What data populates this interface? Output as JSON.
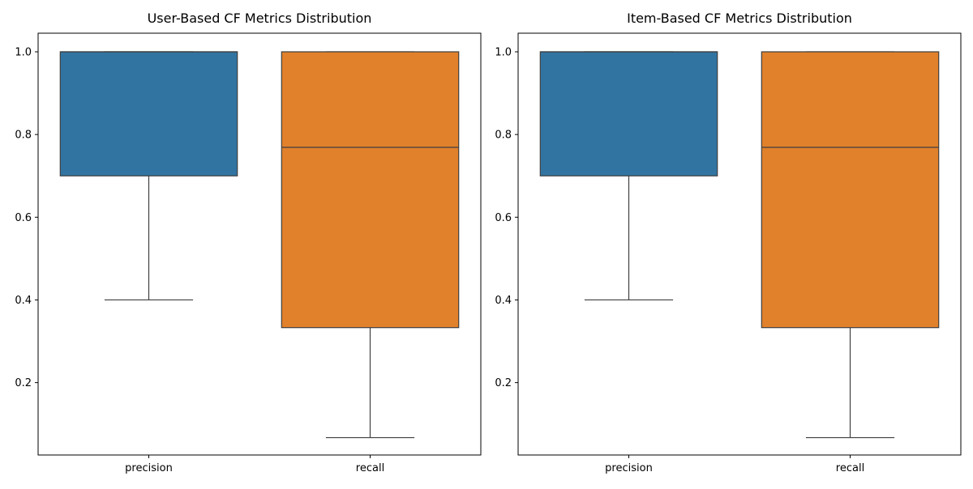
{
  "chart_data": [
    {
      "type": "box",
      "title": "User-Based CF Metrics Distribution",
      "xlabel": "",
      "ylabel": "",
      "categories": [
        "precision",
        "recall"
      ],
      "colors": [
        "#3274a1",
        "#e1812c"
      ],
      "ylim": [
        0.025,
        1.045
      ],
      "yticks": [
        0.2,
        0.4,
        0.6,
        0.8,
        1.0
      ],
      "ytick_labels": [
        "0.2",
        "0.4",
        "0.6",
        "0.8",
        "1.0"
      ],
      "grid": false,
      "boxes": [
        {
          "name": "precision",
          "whisker_low": 0.4,
          "q1": 0.7,
          "median": 1.0,
          "q3": 1.0,
          "whisker_high": 1.0
        },
        {
          "name": "recall",
          "whisker_low": 0.067,
          "q1": 0.333,
          "median": 0.769,
          "q3": 1.0,
          "whisker_high": 1.0
        }
      ]
    },
    {
      "type": "box",
      "title": "Item-Based CF Metrics Distribution",
      "xlabel": "",
      "ylabel": "",
      "categories": [
        "precision",
        "recall"
      ],
      "colors": [
        "#3274a1",
        "#e1812c"
      ],
      "ylim": [
        0.025,
        1.045
      ],
      "yticks": [
        0.2,
        0.4,
        0.6,
        0.8,
        1.0
      ],
      "ytick_labels": [
        "0.2",
        "0.4",
        "0.6",
        "0.8",
        "1.0"
      ],
      "grid": false,
      "boxes": [
        {
          "name": "precision",
          "whisker_low": 0.4,
          "q1": 0.7,
          "median": 1.0,
          "q3": 1.0,
          "whisker_high": 1.0
        },
        {
          "name": "recall",
          "whisker_low": 0.067,
          "q1": 0.333,
          "median": 0.769,
          "q3": 1.0,
          "whisker_high": 1.0
        }
      ]
    }
  ]
}
